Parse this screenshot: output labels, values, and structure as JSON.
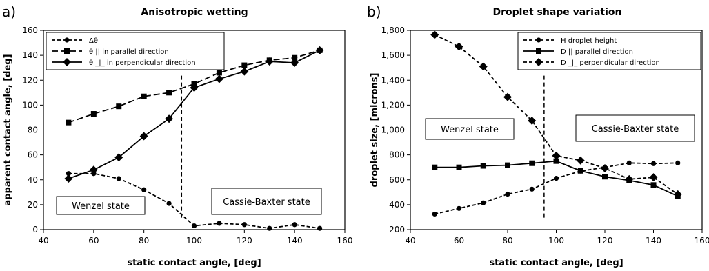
{
  "chart_data": [
    {
      "type": "line",
      "panel_label": "a)",
      "title": "Anisotropic wetting",
      "xlabel": "static contact angle, [deg]",
      "ylabel": "apparent contact angle, [deg]",
      "xlim": [
        40,
        160
      ],
      "ylim": [
        0,
        160
      ],
      "xticks": [
        40,
        60,
        80,
        100,
        120,
        140,
        160
      ],
      "yticks": [
        0,
        20,
        40,
        60,
        80,
        100,
        120,
        140,
        160
      ],
      "ytick_labels": [
        "0",
        "20",
        "40",
        "60",
        "80",
        "100",
        "120",
        "140",
        "160"
      ],
      "legend_position": "top-left",
      "x": [
        50,
        60,
        70,
        80,
        90,
        100,
        110,
        120,
        130,
        140,
        150
      ],
      "series": [
        {
          "name": "Δθ",
          "marker": "circle",
          "dash": "short",
          "values": [
            45,
            45,
            41,
            32,
            21,
            3,
            5,
            4,
            1,
            4,
            1
          ]
        },
        {
          "name": "θ || in parallel direction",
          "marker": "square",
          "dash": "long",
          "values": [
            86,
            93,
            99,
            107,
            110,
            117,
            126,
            132,
            136,
            138,
            144
          ]
        },
        {
          "name": "θ _|_ in perpendicular direction",
          "marker": "diamond",
          "dash": "solid",
          "values": [
            41,
            48,
            58,
            75,
            89,
            114,
            121,
            127,
            135,
            134,
            144
          ]
        }
      ],
      "vline": 95,
      "annotations": [
        {
          "text": "Wenzel state",
          "x": 53,
          "y": 25
        },
        {
          "text": "Cassie-Baxter state",
          "x": 117,
          "y": 28
        }
      ]
    },
    {
      "type": "line",
      "panel_label": "b)",
      "title": "Droplet shape variation",
      "xlabel": "static contact angle, [deg]",
      "ylabel": "droplet size, [microns]",
      "xlim": [
        40,
        160
      ],
      "ylim": [
        200,
        1800
      ],
      "xticks": [
        40,
        60,
        80,
        100,
        120,
        140,
        160
      ],
      "yticks": [
        200,
        400,
        600,
        800,
        1000,
        1200,
        1400,
        1600,
        1800
      ],
      "ytick_labels": [
        "200",
        "400",
        "600",
        "800",
        "1,000",
        "1,200",
        "1,400",
        "1,600",
        "1,800"
      ],
      "legend_position": "top-right",
      "x": [
        50,
        60,
        70,
        80,
        90,
        100,
        110,
        120,
        130,
        140,
        150
      ],
      "series": [
        {
          "name": "H droplet height",
          "marker": "circle",
          "dash": "short",
          "values": [
            325,
            370,
            415,
            485,
            525,
            612,
            670,
            700,
            735,
            730,
            735
          ]
        },
        {
          "name": "D || parallel direction",
          "marker": "square",
          "dash": "solid",
          "values": [
            700,
            700,
            712,
            717,
            733,
            750,
            672,
            625,
            595,
            558,
            468
          ]
        },
        {
          "name": "D _|_ perpendicular direction",
          "marker": "diamond",
          "dash": "short",
          "values": [
            1765,
            1670,
            1510,
            1265,
            1075,
            793,
            755,
            693,
            605,
            620,
            483
          ]
        }
      ],
      "vline": 95,
      "annotations": [
        {
          "text": "Wenzel state",
          "x": 57,
          "y": 1000
        },
        {
          "text": "Cassie-Baxter state",
          "x": 133,
          "y": 1010
        }
      ]
    }
  ]
}
